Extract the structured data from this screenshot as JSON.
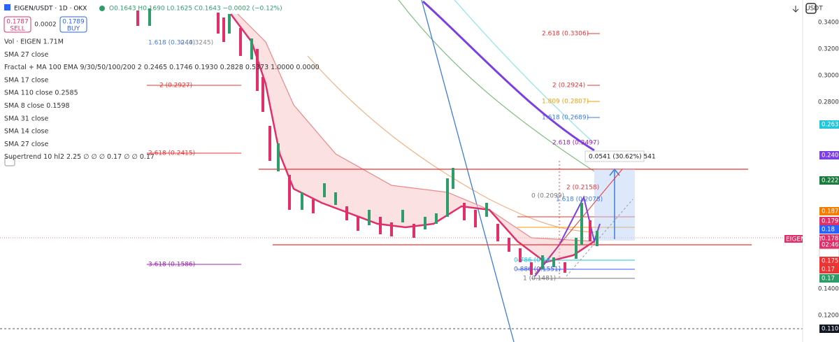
{
  "header": {
    "symbol": "EIGEN/USDT · 1D · OKX",
    "ohlc": "O0.1643 H0.1690 L0.1625 C0.1643 −0.0002 (−0.12%)",
    "sell": {
      "price": "0.1787",
      "label": "SELL"
    },
    "spread": "0.0002",
    "buy": {
      "price": "0.1789",
      "label": "BUY"
    }
  },
  "indicators": [
    "Vol · EIGEN  1.71M",
    "SMA 27 close",
    "Fractal + MA 100 EMA 9/30/50/100/200 2  0.2465  0.1746  0.1930  0.2828  0.5373  1.0000  0.0000",
    "SMA 17 close",
    "SMA 110 close  0.2585",
    "SMA 8 close  0.1598",
    "SMA 31 close",
    "SMA 14 close",
    "SMA 27 close",
    "Supertrend 10 hl2 2.25  ∅  ∅  ∅  0.17  ∅  ∅  0.17"
  ],
  "axis": {
    "currency": "USDT",
    "ticks": [
      "0.3400",
      "0.3200",
      "0.3000",
      "0.2800",
      "0.1400",
      "0.1200"
    ]
  },
  "fibs": [
    {
      "text": "2.618 (0.3306)",
      "color": "#e33"
    },
    {
      "text": "1.618 (0.3244)",
      "color": "#3d7be4"
    },
    {
      "text": "0 (0.3245)",
      "color": "#888"
    },
    {
      "text": "2 (0.2927)",
      "color": "#e33"
    },
    {
      "text": "2.618 (0.2415)",
      "color": "#e33"
    },
    {
      "text": "3.618 (0.1586)",
      "color": "#9c27b0"
    },
    {
      "text": "2 (0.2924)",
      "color": "#e33"
    },
    {
      "text": "1.809 (0.2807)",
      "color": "#f59e0b"
    },
    {
      "text": "1.618 (0.2689)",
      "color": "#3d7be4"
    },
    {
      "text": "2.618 (0.2497)",
      "color": "#9c27b0"
    },
    {
      "text": "0 (0.2099)",
      "color": "#777"
    },
    {
      "text": "2 (0.2158)",
      "color": "#e33"
    },
    {
      "text": "1.618 (0.2078)",
      "color": "#3d7be4"
    },
    {
      "text": "0.786 (0.16",
      "color": "#26c6da"
    },
    {
      "text": "0.886 (0.1551)",
      "color": "#3d5afe"
    },
    {
      "text": "1 (0.1481)",
      "color": "#777"
    }
  ],
  "badges": [
    {
      "text": "0.263",
      "color": "#26c6da"
    },
    {
      "text": "0.240",
      "color": "#7b3fe4"
    },
    {
      "text": "0.222",
      "color": "#1b7a3e"
    },
    {
      "text": "0.187",
      "color": "#f57c00"
    },
    {
      "text": "0.179",
      "color": "#e0306a"
    },
    {
      "text": "0.18",
      "color": "#2962ff"
    },
    {
      "text": "0.178",
      "color": "#e0306a"
    },
    {
      "text": "02:46",
      "color": "#e0306a"
    },
    {
      "text": "0.177",
      "color": "#ffffff"
    },
    {
      "text": "0.175",
      "color": "#e33"
    },
    {
      "text": "0.17",
      "color": "#e33"
    },
    {
      "text": "0.17",
      "color": "#2e9d6a"
    },
    {
      "text": "0.110",
      "color": "#131722"
    }
  ],
  "measure": "0.0541 (30.62%) 541",
  "symbol_tag": "EIGENUSDT"
}
